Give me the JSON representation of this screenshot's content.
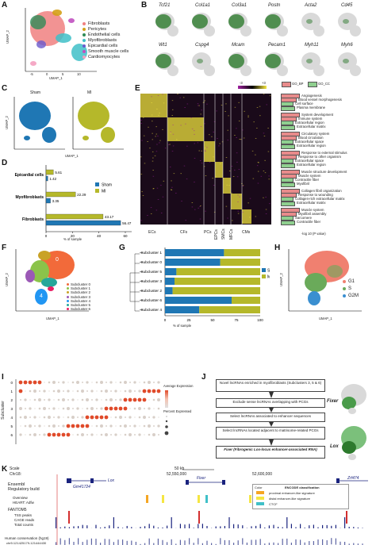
{
  "panels": {
    "A": "A",
    "B": "B",
    "C": "C",
    "D": "D",
    "E": "E",
    "F": "F",
    "G": "G",
    "H": "H",
    "I": "I",
    "J": "J",
    "K": "K"
  },
  "colors": {
    "fibroblasts": "#f08080",
    "pericytes": "#d4a017",
    "endothelial": "#2e8b57",
    "myofibroblasts": "#40c0c8",
    "epicardial": "#6a5acd",
    "smooth_muscle": "#c050c0",
    "cardiomyocytes": "#f4a0c0",
    "sham": "#1f77b4",
    "mi": "#b5b82a",
    "gene_hi": "#2d7a2d",
    "gene_lo": "#d9d9d9",
    "heat_hi": "#f5e642",
    "heat_lo": "#a020a0",
    "bp": "#e88b8b",
    "cc": "#8fcf8f"
  },
  "A": {
    "xlabel": "UMAP_1",
    "ylabel": "UMAP_2",
    "xticks": [
      "-5",
      "0",
      "5",
      "10"
    ],
    "yticks": [
      "10",
      "5",
      "0",
      "-5"
    ],
    "legend": [
      "Fibroblasts",
      "Pericytes",
      "Endothelial cells",
      "Myofibroblasts",
      "Epicardial cells",
      "Smooth muscle cells",
      "Cardiomyocytes"
    ]
  },
  "B": {
    "genes_row1": [
      "Tcf21",
      "Col1a1",
      "Col3a1",
      "Postn",
      "Acta2",
      "Cd45"
    ],
    "genes_row2": [
      "Wt1",
      "Cspg4",
      "Mcam",
      "Pecam1",
      "Myh11",
      "Myh6"
    ],
    "colorbar": [
      "-3",
      "+3"
    ]
  },
  "C": {
    "left": "Sham",
    "right": "MI",
    "xlabel": "UMAP_1",
    "ylabel": "UMAP_2",
    "xticks": [
      "-5",
      "0",
      "5",
      "10"
    ],
    "yticks": [
      "10",
      "5",
      "0",
      "-5"
    ]
  },
  "D": {
    "xlabel": "% of sample",
    "legend": [
      "Sham",
      "MI"
    ],
    "xticks": [
      "0",
      "20",
      "40",
      "60"
    ],
    "chart_data": {
      "type": "bar",
      "categories": [
        "Epicardial cells",
        "Myofibroblasts",
        "Fibroblasts"
      ],
      "series": [
        {
          "name": "Sham",
          "values": [
            1.42,
            3.35,
            56.47
          ]
        },
        {
          "name": "MI",
          "values": [
            5.61,
            22.29,
            43.17
          ]
        }
      ],
      "xlim": [
        0,
        60
      ]
    }
  },
  "E": {
    "colorbar": [
      "-3",
      "+3"
    ],
    "go_bp": "GO_BP",
    "go_cc": "GO_CC",
    "clusters": [
      "ECs",
      "CFs",
      "PCs",
      "EPCs",
      "SMCs",
      "MFCs",
      "CMs"
    ],
    "xlabel": "-log 10 (P value)",
    "terms": [
      "Angiogenesis",
      "Blood vessel morphogenesis",
      "Cell surface",
      "Plasma membrane",
      "System development",
      "Immune system",
      "Extracellular region",
      "Extracellular matrix",
      "Circulatory system",
      "Blood circulation",
      "Extracellular space",
      "Extracellular region",
      "Response to external stimulus",
      "Response to other organism",
      "Extracellular space",
      "Extracellular region",
      "Muscle structure development",
      "Muscle system",
      "Contractile fiber",
      "Myofibril",
      "Collagen fibril organization",
      "Response to wounding",
      "Collagen-rich extracellular matrix",
      "Extracellular matrix",
      "Muscle system",
      "Myofibril assembly",
      "Sarcomere",
      "Contractile fiber"
    ]
  },
  "F": {
    "xlabel": "UMAP_1",
    "ylabel": "UMAP_2",
    "xticks": [
      "-5",
      "0",
      "5"
    ],
    "yticks": [
      "10",
      "5",
      "0",
      "-5"
    ],
    "legend": [
      "Subcluster 0",
      "Subcluster 1",
      "Subcluster 2",
      "Subcluster 3",
      "Subcluster 4",
      "Subcluster 5",
      "Subcluster 6"
    ],
    "labels": [
      "0",
      "1",
      "2",
      "3",
      "4",
      "5",
      "6"
    ]
  },
  "G": {
    "xlabel": "% of sample",
    "legend": [
      "Sham",
      "MI"
    ],
    "xticks": [
      "0",
      "25",
      "50",
      "75",
      "100"
    ],
    "chart_data": {
      "type": "bar",
      "categories": [
        "Subcluster 1",
        "Subcluster 0",
        "Subcluster 5",
        "Subcluster 3",
        "Subcluster 2",
        "Subcluster 6",
        "Subcluster 4"
      ],
      "series": [
        {
          "name": "Sham",
          "values": [
            62,
            58,
            12,
            10,
            8,
            70,
            36
          ]
        },
        {
          "name": "MI",
          "values": [
            38,
            42,
            88,
            90,
            92,
            30,
            64
          ]
        }
      ],
      "xlim": [
        0,
        100
      ]
    }
  },
  "H": {
    "xlabel": "UMAP_1",
    "ylabel": "UMAP_2",
    "legend": [
      "G1",
      "S",
      "G2M"
    ],
    "xticks": [
      "-5",
      "0",
      "5"
    ],
    "yticks": [
      "10",
      "5",
      "0",
      "-5"
    ]
  },
  "I": {
    "ylabel": "Subcluster",
    "rows": [
      "0",
      "1",
      "2",
      "3",
      "4",
      "5",
      "6"
    ],
    "legend_title1": "Average Expression",
    "legend_title2": "Percent Expressed",
    "avg_ticks": [
      "2",
      "1",
      "0",
      "-1"
    ],
    "pct_ticks": [
      "0",
      "25",
      "50",
      "75",
      "100"
    ]
  },
  "J": {
    "steps": [
      "Novel lncRNAs enriched in myofibroblasts (Subclusters 3, 5 & 6)",
      "Exclude sense lncRNAs overlapping with PCGs",
      "Select lncRNAs associated to enhancer sequences",
      "Select lncRNAs located adjacent to matrisome-related PCGs",
      "Fixer (Fibrogenic Lox-locus enhancer-associated RNA)"
    ],
    "fixer": "Fixer",
    "lox": "Lox"
  },
  "K": {
    "scale": "Scale",
    "chr": "Chr18:",
    "scale_bar": "50 kb",
    "coords": [
      "52,550,000",
      "52,600,000"
    ],
    "track_labels": [
      "Ensembl",
      "Regulatory build",
      "Overview",
      "HEART: Adfw",
      "FANTOM5",
      "TSS peaks",
      "CAGE reads",
      "Total counts",
      "Human conservation (hg19)"
    ],
    "genes": [
      "Lox",
      "Gm41724",
      "Fixer",
      "Zrf474"
    ],
    "encode_title": "ENCODE classification",
    "encode_color": "Color",
    "encode_items": [
      "proximal enhancer-like signature",
      "distal enhancer-like signature",
      "CTCF"
    ],
    "bottom": "chr5:121425179-121444430"
  }
}
